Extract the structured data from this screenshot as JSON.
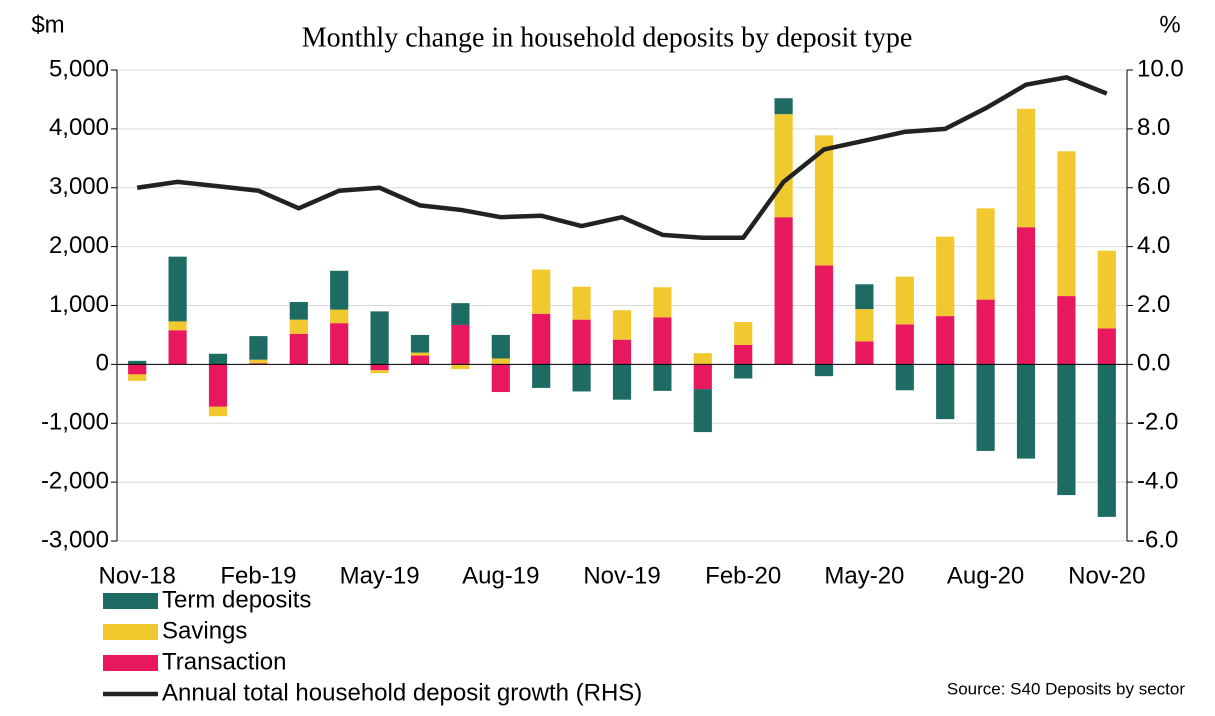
{
  "chart_data": {
    "type": "bar",
    "title": "Monthly change in household deposits by deposit type",
    "y_label": "$m",
    "y2_label": "%",
    "source": "Source: S40 Deposits by sector",
    "stacked": true,
    "categories": [
      "Nov-18",
      null,
      null,
      "Feb-19",
      null,
      null,
      "May-19",
      null,
      null,
      "Aug-19",
      null,
      null,
      "Nov-19",
      null,
      null,
      "Feb-20",
      null,
      null,
      "May-20",
      null,
      null,
      "Aug-20",
      null,
      null,
      "Nov-20"
    ],
    "series": [
      {
        "name": "Term deposits",
        "color": "#1d6b63",
        "values": [
          60,
          1100,
          180,
          400,
          300,
          660,
          900,
          300,
          370,
          400,
          -400,
          -460,
          -600,
          -450,
          -730,
          -240,
          270,
          -200,
          420,
          -440,
          -930,
          -1470,
          -1600,
          -2220,
          -2590
        ]
      },
      {
        "name": "Savings",
        "color": "#f2c82f",
        "values": [
          -110,
          150,
          -160,
          60,
          240,
          230,
          -50,
          50,
          -80,
          100,
          750,
          560,
          500,
          510,
          190,
          390,
          1750,
          2210,
          550,
          810,
          1350,
          1550,
          2010,
          2460,
          1320
        ]
      },
      {
        "name": "Transaction",
        "color": "#e8185e",
        "values": [
          -170,
          580,
          -720,
          20,
          520,
          700,
          -100,
          150,
          670,
          -470,
          860,
          760,
          420,
          800,
          -420,
          330,
          2500,
          1680,
          390,
          680,
          820,
          1100,
          2330,
          1160,
          610
        ]
      },
      {
        "name": "Annual total household deposit growth (RHS)",
        "color": "#222222",
        "type": "line",
        "axis": "y2",
        "values": [
          6.0,
          6.2,
          6.05,
          5.9,
          5.3,
          5.9,
          6.0,
          5.4,
          5.25,
          5.0,
          5.05,
          4.7,
          5.0,
          4.4,
          4.3,
          4.3,
          6.2,
          7.3,
          7.6,
          7.9,
          8.0,
          8.7,
          9.5,
          9.75,
          9.2
        ]
      }
    ],
    "ylim": [
      -3000,
      5000
    ],
    "yticks": [
      {
        "value": -3000,
        "label": "-3,000"
      },
      {
        "value": -2000,
        "label": "-2,000"
      },
      {
        "value": -1000,
        "label": "-1,000"
      },
      0,
      {
        "value": 1000,
        "label": "1,000"
      },
      {
        "value": 2000,
        "label": "2,000"
      },
      {
        "value": 3000,
        "label": "3,000"
      },
      {
        "value": 4000,
        "label": "4,000"
      },
      {
        "value": 5000,
        "label": "5,000"
      }
    ],
    "y2lim": [
      -6,
      10
    ],
    "y2ticks": [
      {
        "value": -6,
        "label": "-6.0"
      },
      {
        "value": -4,
        "label": "-4.0"
      },
      {
        "value": -2,
        "label": "-2.0"
      },
      {
        "value": 0,
        "label": "0.0"
      },
      {
        "value": 2,
        "label": "2.0"
      },
      {
        "value": 4,
        "label": "4.0"
      },
      {
        "value": 6,
        "label": "6.0"
      },
      {
        "value": 8,
        "label": "8.0"
      },
      {
        "value": 10,
        "label": "10.0"
      }
    ],
    "grid": true
  }
}
